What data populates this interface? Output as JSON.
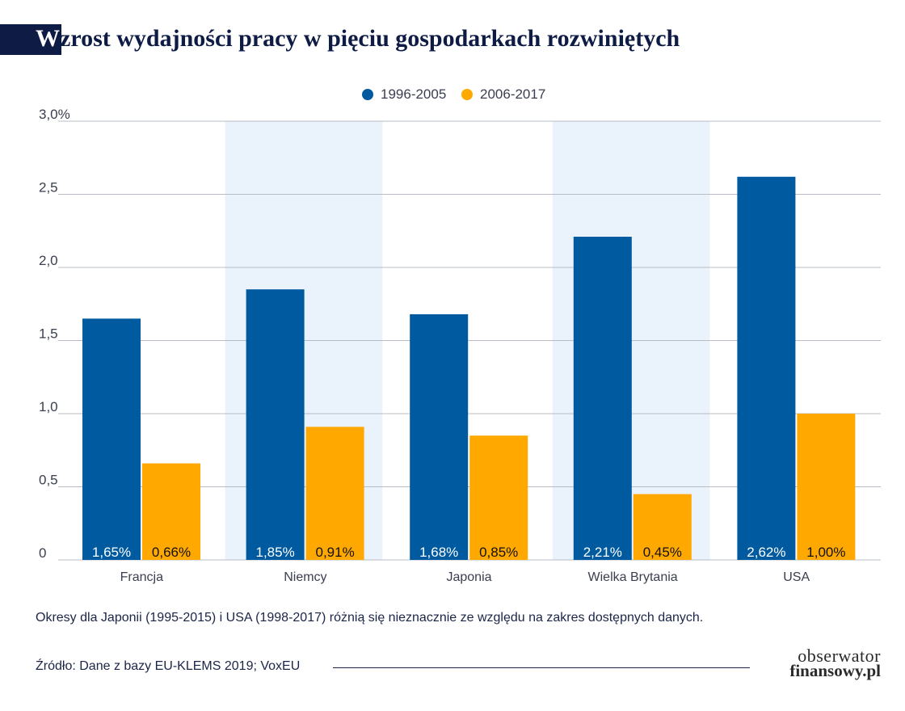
{
  "header": {
    "title_first": "W",
    "title_rest": "zrost wydajności pracy w pięciu gospodarkach rozwiniętych"
  },
  "colors": {
    "series_1": "#005aa0",
    "series_2": "#ffa800",
    "band": "#eaf2fb",
    "grid": "#b7bcc6",
    "axis_text": "#3a3f4f"
  },
  "chart_data": {
    "type": "bar",
    "categories": [
      "Francja",
      "Niemcy",
      "Japonia",
      "Wielka Brytania",
      "USA"
    ],
    "series": [
      {
        "name": "1996-2005",
        "values": [
          1.65,
          1.85,
          1.68,
          2.21,
          2.62
        ],
        "labels": [
          "1,65%",
          "1,85%",
          "1,68%",
          "2,21%",
          "2,62%"
        ]
      },
      {
        "name": "2006-2017",
        "values": [
          0.66,
          0.91,
          0.85,
          0.45,
          1.0
        ],
        "labels": [
          "0,66%",
          "0,91%",
          "0,85%",
          "0,45%",
          "1,00%"
        ]
      }
    ],
    "yticks": [
      0,
      0.5,
      1.0,
      1.5,
      2.0,
      2.5,
      3.0
    ],
    "ytick_labels": [
      "0",
      "0,5",
      "1,0",
      "1,5",
      "2,0",
      "2,5",
      "3,0%"
    ],
    "ylim": [
      0,
      3.0
    ],
    "legend_position": "top-center",
    "grid": true,
    "shaded_categories": [
      "Niemcy",
      "Wielka Brytania"
    ]
  },
  "footnote": "Okresy dla Japonii (1995-2015) i USA (1998-2017) różnią się nieznacznie ze względu na zakres dostępnych danych.",
  "source": "Źródło: Dane z bazy EU-KLEMS 2019; VoxEU",
  "logo": {
    "line1": "obserwator",
    "line2": "finansowy.pl"
  }
}
